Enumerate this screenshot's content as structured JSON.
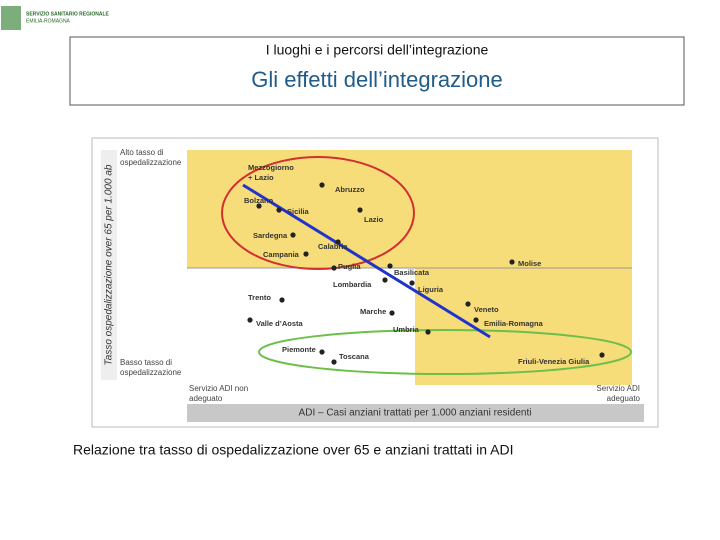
{
  "logo": {
    "line1": "SERVIZIO SANITARIO REGIONALE",
    "line2": "EMILIA-ROMAGNA"
  },
  "header": {
    "subtitle": "I luoghi e i percorsi dell’integrazione",
    "title": "Gli effetti dell’integrazione"
  },
  "figure": {
    "y_axis_label": "Tasso ospedalizzazione over 65 per 1.000 ab",
    "top_label": "Alto tasso di ospedalizzazione",
    "bottom_label": "Basso tasso di ospedalizzazione",
    "left_label": "Servizio ADI non adeguato",
    "right_label": "Servizio ADI adeguato",
    "x_axis_label": "ADI – Casi anziani trattati per 1.000 anziani residenti",
    "group_label": [
      "Mezzogiorno",
      "+ Lazio"
    ],
    "regions": [
      {
        "name": "Abruzzo"
      },
      {
        "name": "Bolzano"
      },
      {
        "name": "Sicilia"
      },
      {
        "name": "Lazio"
      },
      {
        "name": "Sardegna"
      },
      {
        "name": "Calabria"
      },
      {
        "name": "Campania"
      },
      {
        "name": "Puglia"
      },
      {
        "name": "Basilicata"
      },
      {
        "name": "Molise"
      },
      {
        "name": "Lombardia"
      },
      {
        "name": "Liguria"
      },
      {
        "name": "Trento"
      },
      {
        "name": "Veneto"
      },
      {
        "name": "Marche"
      },
      {
        "name": "Valle d’Aosta"
      },
      {
        "name": "Emilia-Romagna"
      },
      {
        "name": "Umbria"
      },
      {
        "name": "Piemonte"
      },
      {
        "name": "Toscana"
      },
      {
        "name": "Friuli-Venezia Giulia"
      }
    ]
  },
  "caption": "Relazione tra tasso di ospedalizzazione over 65 e anziani trattati in ADI"
}
